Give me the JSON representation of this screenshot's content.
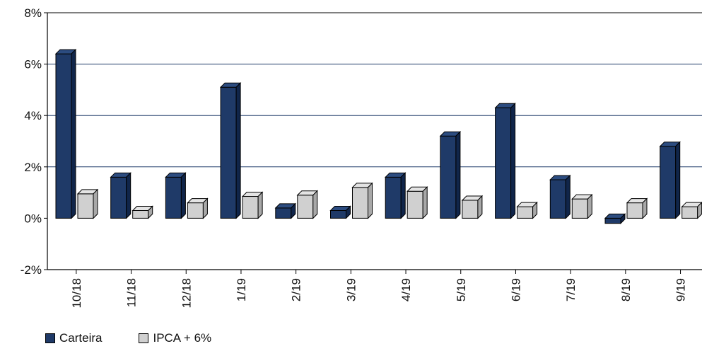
{
  "chart_data": {
    "type": "bar",
    "categories": [
      "10/18",
      "11/18",
      "12/18",
      "1/19",
      "2/19",
      "3/19",
      "4/19",
      "5/19",
      "6/19",
      "7/19",
      "8/19",
      "9/19"
    ],
    "series": [
      {
        "name": "Carteira",
        "color": "#1f3a68",
        "values": [
          6.4,
          1.6,
          1.6,
          5.1,
          0.4,
          0.3,
          1.6,
          3.2,
          4.3,
          1.5,
          -0.2,
          2.8
        ]
      },
      {
        "name": "IPCA + 6%",
        "color": "#d0d0d0",
        "values": [
          0.95,
          0.3,
          0.6,
          0.85,
          0.9,
          1.2,
          1.05,
          0.7,
          0.45,
          0.75,
          0.6,
          0.45
        ]
      }
    ],
    "y_ticks": [
      "8%",
      "6%",
      "4%",
      "2%",
      "0%",
      "-2%"
    ],
    "y_tick_values": [
      8,
      6,
      4,
      2,
      0,
      -2
    ],
    "ylim": [
      -2,
      8
    ],
    "grid": true,
    "legend_position": "bottom-left",
    "title": "",
    "xlabel": "",
    "ylabel": ""
  }
}
